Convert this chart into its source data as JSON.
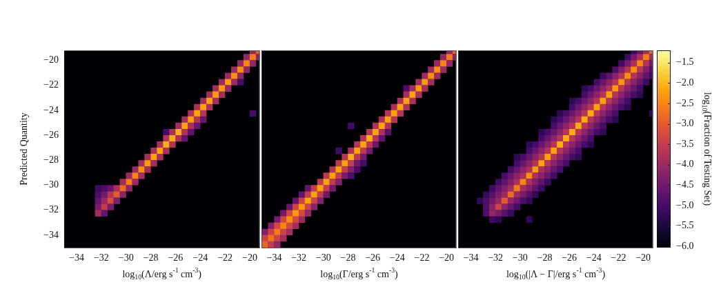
{
  "chart_data": [
    {
      "type": "scatter",
      "marker": "square",
      "xlabel": "log$_{10}$(Λ/erg s$^{-1}$ cm$^{-3}$)",
      "ylabel": "Predicted Quantity",
      "xlim": [
        -35,
        -19.2
      ],
      "ylim": [
        -35,
        -19.2
      ],
      "xticks": [
        {
          "value": -34,
          "label": "−34"
        },
        {
          "value": -32,
          "label": "−32"
        },
        {
          "value": -30,
          "label": "−30"
        },
        {
          "value": -28,
          "label": "−28"
        },
        {
          "value": -26,
          "label": "−26"
        },
        {
          "value": -24,
          "label": "−24"
        },
        {
          "value": -22,
          "label": "−22"
        },
        {
          "value": -20,
          "label": "−20"
        }
      ],
      "yticks": [
        {
          "value": -34,
          "label": "−34"
        },
        {
          "value": -32,
          "label": "−32"
        },
        {
          "value": -30,
          "label": "−30"
        },
        {
          "value": -28,
          "label": "−28"
        },
        {
          "value": -26,
          "label": "−26"
        },
        {
          "value": -24,
          "label": "−24"
        },
        {
          "value": -22,
          "label": "−22"
        },
        {
          "value": -20,
          "label": "−20"
        }
      ],
      "x": [
        -19.75,
        -19.25,
        -20.25,
        -19.75,
        -19.25,
        -20.75,
        -20.25,
        -19.75,
        -21.25,
        -20.75,
        -20.25,
        -21.75,
        -21.25,
        -20.75,
        -22.25,
        -21.75,
        -21.25,
        -20.75,
        -22.75,
        -22.25,
        -21.75,
        -23.25,
        -22.75,
        -22.25,
        -23.75,
        -23.25,
        -22.75,
        -24.25,
        -23.75,
        -23.25,
        -24.75,
        -24.25,
        -23.75,
        -19.75,
        -25.25,
        -24.75,
        -24.25,
        -23.75,
        -25.75,
        -25.25,
        -24.75,
        -24.25,
        -26.75,
        -26.25,
        -25.75,
        -25.25,
        -24.75,
        -26.75,
        -26.25,
        -25.75,
        -25.25,
        -27.25,
        -26.75,
        -26.25,
        -27.75,
        -27.25,
        -26.75,
        -28.25,
        -27.75,
        -27.25,
        -28.75,
        -28.25,
        -27.75,
        -29.25,
        -28.75,
        -28.25,
        -29.75,
        -29.25,
        -28.75,
        -30.25,
        -29.75,
        -29.25,
        -32.25,
        -31.75,
        -31.25,
        -30.75,
        -30.25,
        -29.75,
        -32.25,
        -31.75,
        -31.25,
        -30.75,
        -30.25,
        -32.25,
        -31.75,
        -31.25,
        -30.75,
        -32.25,
        -31.75,
        -31.25,
        -32.25,
        -31.75
      ],
      "values": [
        -19.25,
        -19.25,
        -19.75,
        -19.75,
        -19.75,
        -20.25,
        -20.25,
        -20.25,
        -20.75,
        -20.75,
        -20.75,
        -21.25,
        -21.25,
        -21.25,
        -21.75,
        -21.75,
        -21.75,
        -21.75,
        -22.25,
        -22.25,
        -22.25,
        -22.75,
        -22.75,
        -22.75,
        -23.25,
        -23.25,
        -23.25,
        -23.75,
        -23.75,
        -23.75,
        -24.25,
        -24.25,
        -24.25,
        -24.25,
        -24.75,
        -24.75,
        -24.75,
        -24.75,
        -25.25,
        -25.25,
        -25.25,
        -25.25,
        -25.75,
        -25.75,
        -25.75,
        -25.75,
        -25.75,
        -26.25,
        -26.25,
        -26.25,
        -26.25,
        -26.75,
        -26.75,
        -26.75,
        -27.25,
        -27.25,
        -27.25,
        -27.75,
        -27.75,
        -27.75,
        -28.25,
        -28.25,
        -28.25,
        -28.75,
        -28.75,
        -28.75,
        -29.25,
        -29.25,
        -29.25,
        -29.75,
        -29.75,
        -29.75,
        -30.25,
        -30.25,
        -30.25,
        -30.25,
        -30.25,
        -30.25,
        -30.75,
        -30.75,
        -30.75,
        -30.75,
        -30.75,
        -31.25,
        -31.25,
        -31.25,
        -31.25,
        -31.75,
        -31.75,
        -31.75,
        -32.25,
        -32.25
      ],
      "colors": [
        "#932667",
        "#e8642a",
        "#932667",
        "#f47d17",
        "#8a2368",
        "#932667",
        "#f68614",
        "#932667",
        "#9b2963",
        "#f88f11",
        "#932667",
        "#9b2963",
        "#f88f11",
        "#932667",
        "#9b2963",
        "#fa990e",
        "#9b2963",
        "#470c69",
        "#a42d5f",
        "#fa990e",
        "#9b2963",
        "#a42d5f",
        "#fa990e",
        "#a42d5f",
        "#a42d5f",
        "#fba20b",
        "#a42d5f",
        "#ac305b",
        "#fba20b",
        "#ac305b",
        "#ac305b",
        "#fba20b",
        "#b53457",
        "#470c69",
        "#a42d5f",
        "#fa990e",
        "#b53457",
        "#68166e",
        "#a42d5f",
        "#fba20b",
        "#ac305b",
        "#68166e",
        "#470c69",
        "#ac305b",
        "#fbac12",
        "#ac305b",
        "#60146d",
        "#b53457",
        "#fbac12",
        "#ac305b",
        "#60146d",
        "#ac305b",
        "#fbac12",
        "#b53457",
        "#ac305b",
        "#fba20b",
        "#ac305b",
        "#a42d5f",
        "#fba20b",
        "#ac305b",
        "#a42d5f",
        "#fa990e",
        "#a42d5f",
        "#9b2963",
        "#f88f11",
        "#a42d5f",
        "#9b2963",
        "#f68614",
        "#a42d5f",
        "#a42d5f",
        "#f47d17",
        "#9b2963",
        "#3f0a64",
        "#500e6a",
        "#68166e",
        "#ac305b",
        "#ec6c23",
        "#932667",
        "#500e6a",
        "#711a6d",
        "#b53457",
        "#e35c31",
        "#8a2368",
        "#60146d",
        "#9b2963",
        "#d84d3e",
        "#82206a",
        "#791d6b",
        "#c43d4e",
        "#791d6b",
        "#a42d5f",
        "#60146d"
      ]
    },
    {
      "type": "scatter",
      "marker": "square",
      "xlabel": "log$_{10}$(Γ/erg s$^{-1}$ cm$^{-3}$)",
      "tick_labels": "x",
      "xlim": [
        -35,
        -19.2
      ],
      "ylim": [
        -35,
        -19.2
      ],
      "xticks": [
        {
          "value": -34,
          "label": "−34"
        },
        {
          "value": -32,
          "label": "−32"
        },
        {
          "value": -30,
          "label": "−30"
        },
        {
          "value": -28,
          "label": "−28"
        },
        {
          "value": -26,
          "label": "−26"
        },
        {
          "value": -24,
          "label": "−24"
        },
        {
          "value": -22,
          "label": "−22"
        },
        {
          "value": -20,
          "label": "−20"
        }
      ],
      "x": [
        -19.75,
        -19.25,
        -20.25,
        -19.75,
        -19.25,
        -20.75,
        -20.25,
        -19.75,
        -21.25,
        -20.75,
        -20.25,
        -21.75,
        -21.25,
        -20.75,
        -22.25,
        -21.75,
        -21.25,
        -23.25,
        -22.75,
        -22.25,
        -21.75,
        -23.25,
        -22.75,
        -22.25,
        -23.75,
        -23.25,
        -22.75,
        -24.25,
        -23.75,
        -23.25,
        -24.75,
        -24.25,
        -23.75,
        -25.25,
        -24.75,
        -24.25,
        -27.75,
        -25.75,
        -25.25,
        -24.75,
        -26.25,
        -25.75,
        -25.25,
        -24.75,
        -26.75,
        -26.25,
        -25.75,
        -25.25,
        -27.25,
        -26.75,
        -26.25,
        -25.75,
        -28.75,
        -27.75,
        -27.25,
        -26.75,
        -26.25,
        -28.25,
        -27.75,
        -27.25,
        -26.75,
        -28.75,
        -28.25,
        -27.75,
        -27.25,
        -26.75,
        -29.25,
        -28.75,
        -28.25,
        -27.75,
        -27.25,
        -29.75,
        -29.25,
        -28.75,
        -28.25,
        -27.75,
        -30.25,
        -29.75,
        -29.25,
        -28.75,
        -31.25,
        -30.75,
        -30.25,
        -29.75,
        -29.25,
        -31.75,
        -31.25,
        -30.75,
        -30.25,
        -29.75,
        -32.25,
        -31.75,
        -31.25,
        -30.75,
        -30.25,
        -32.75,
        -32.25,
        -31.75,
        -31.25,
        -30.75,
        -33.25,
        -32.75,
        -32.25,
        -31.75,
        -31.25,
        -33.75,
        -33.25,
        -32.75,
        -32.25,
        -31.75,
        -34.25,
        -33.75,
        -33.25,
        -32.75,
        -32.25,
        -34.75,
        -34.25,
        -33.75,
        -33.25,
        -32.75,
        -34.75,
        -34.25,
        -33.75,
        -33.25,
        -34.75,
        -34.25,
        -33.75
      ],
      "values": [
        -19.25,
        -19.25,
        -19.75,
        -19.75,
        -19.75,
        -20.25,
        -20.25,
        -20.25,
        -20.75,
        -20.75,
        -20.75,
        -21.25,
        -21.25,
        -21.25,
        -21.75,
        -21.75,
        -21.75,
        -22.25,
        -22.25,
        -22.25,
        -22.25,
        -22.75,
        -22.75,
        -22.75,
        -23.25,
        -23.25,
        -23.25,
        -23.75,
        -23.75,
        -23.75,
        -24.25,
        -24.25,
        -24.25,
        -24.75,
        -24.75,
        -24.75,
        -25.25,
        -25.25,
        -25.25,
        -25.25,
        -25.75,
        -25.75,
        -25.75,
        -25.75,
        -26.25,
        -26.25,
        -26.25,
        -26.25,
        -26.75,
        -26.75,
        -26.75,
        -26.75,
        -27.25,
        -27.25,
        -27.25,
        -27.25,
        -27.25,
        -27.75,
        -27.75,
        -27.75,
        -27.75,
        -28.25,
        -28.25,
        -28.25,
        -28.25,
        -28.25,
        -28.75,
        -28.75,
        -28.75,
        -28.75,
        -28.75,
        -29.25,
        -29.25,
        -29.25,
        -29.25,
        -29.25,
        -29.75,
        -29.75,
        -29.75,
        -29.75,
        -30.25,
        -30.25,
        -30.25,
        -30.25,
        -30.25,
        -30.75,
        -30.75,
        -30.75,
        -30.75,
        -30.75,
        -31.25,
        -31.25,
        -31.25,
        -31.25,
        -31.25,
        -31.75,
        -31.75,
        -31.75,
        -31.75,
        -31.75,
        -32.25,
        -32.25,
        -32.25,
        -32.25,
        -32.25,
        -32.75,
        -32.75,
        -32.75,
        -32.75,
        -32.75,
        -33.25,
        -33.25,
        -33.25,
        -33.25,
        -33.25,
        -33.75,
        -33.75,
        -33.75,
        -33.75,
        -33.75,
        -34.25,
        -34.25,
        -34.25,
        -34.25,
        -34.75,
        -34.75,
        -34.75
      ],
      "colors": [
        "#932667",
        "#e8642a",
        "#932667",
        "#f47d17",
        "#8a2368",
        "#9b2963",
        "#f68614",
        "#932667",
        "#9b2963",
        "#f88f11",
        "#9b2963",
        "#a42d5f",
        "#f88f11",
        "#9b2963",
        "#a42d5f",
        "#fa990e",
        "#a42d5f",
        "#500e6a",
        "#a42d5f",
        "#fa990e",
        "#a42d5f",
        "#a42d5f",
        "#fba20b",
        "#ac305b",
        "#ac305b",
        "#fba20b",
        "#ac305b",
        "#ac305b",
        "#fba20b",
        "#ac305b",
        "#b53457",
        "#fba20b",
        "#b53457",
        "#ac305b",
        "#fba20b",
        "#b53457",
        "#470c69",
        "#ac305b",
        "#fba20b",
        "#ac305b",
        "#b53457",
        "#fba20b",
        "#ac305b",
        "#58116b",
        "#b53457",
        "#fbac12",
        "#b53457",
        "#60146d",
        "#b53457",
        "#fba20b",
        "#bd3853",
        "#68166e",
        "#470c69",
        "#ac305b",
        "#fba20b",
        "#bd3853",
        "#711a6d",
        "#b53457",
        "#fbac12",
        "#bd3853",
        "#711a6d",
        "#bd3853",
        "#fba20b",
        "#c43d4e",
        "#711a6d",
        "#470c69",
        "#b53457",
        "#fba20b",
        "#c43d4e",
        "#82206a",
        "#470c69",
        "#bd3853",
        "#fba20b",
        "#c43d4e",
        "#791d6b",
        "#500e6a",
        "#bd3853",
        "#fba20b",
        "#c43d4e",
        "#82206a",
        "#60146d",
        "#c43d4e",
        "#fba20b",
        "#c43d4e",
        "#711a6d",
        "#60146d",
        "#c43d4e",
        "#fba20b",
        "#c43d4e",
        "#711a6d",
        "#60146d",
        "#cb4348",
        "#fba20b",
        "#cb4348",
        "#82206a",
        "#68166e",
        "#cb4348",
        "#fa990e",
        "#cb4348",
        "#8a2368",
        "#711a6d",
        "#d24843",
        "#fa990e",
        "#d24843",
        "#932667",
        "#791d6b",
        "#d24843",
        "#f88f11",
        "#d24843",
        "#9b2963",
        "#82206a",
        "#d24843",
        "#f68614",
        "#d24843",
        "#a42d5f",
        "#82206a",
        "#cb4348",
        "#f47d17",
        "#cb4348",
        "#a42d5f",
        "#cb4348",
        "#f1741c",
        "#cb4348",
        "#a42d5f",
        "#e8642a",
        "#c43d4e",
        "#932667"
      ]
    },
    {
      "type": "scatter",
      "marker": "square",
      "xlabel": "log$_{10}$(|Λ − Γ|/erg s$^{-1}$ cm$^{-3}$)",
      "tick_labels": "x",
      "clabel": "log$_{10}$(Fraction of Testing Set)",
      "xlim": [
        -35,
        -19.2
      ],
      "ylim": [
        -35,
        -19.2
      ],
      "xticks": [
        {
          "value": -34,
          "label": "−34"
        },
        {
          "value": -32,
          "label": "−32"
        },
        {
          "value": -30,
          "label": "−30"
        },
        {
          "value": -28,
          "label": "−28"
        },
        {
          "value": -26,
          "label": "−26"
        },
        {
          "value": -24,
          "label": "−24"
        },
        {
          "value": -22,
          "label": "−22"
        },
        {
          "value": -20,
          "label": "−20"
        }
      ],
      "clim": [
        -6.03,
        -1.2
      ],
      "cticks": [
        {
          "value": -6,
          "label": "−6.0"
        },
        {
          "value": -5.5,
          "label": "−5.5"
        },
        {
          "value": -5,
          "label": "−5.0"
        },
        {
          "value": -4.5,
          "label": "−4.5"
        },
        {
          "value": -4,
          "label": "−4.0"
        },
        {
          "value": -3.5,
          "label": "−3.5"
        },
        {
          "value": -3,
          "label": "−3.0"
        },
        {
          "value": -2.5,
          "label": "−2.5"
        },
        {
          "value": -2,
          "label": "−2.0"
        },
        {
          "value": -1.5,
          "label": "−1.5"
        }
      ],
      "x": [
        -20.75,
        -20.25,
        -19.75,
        -19.25,
        -21.25,
        -20.75,
        -20.25,
        -19.75,
        -19.25,
        -21.75,
        -21.25,
        -20.75,
        -20.25,
        -19.75,
        -19.25,
        -22.25,
        -21.75,
        -21.25,
        -20.75,
        -20.25,
        -19.75,
        -19.25,
        -23.25,
        -22.75,
        -22.25,
        -21.75,
        -21.25,
        -20.75,
        -20.25,
        -19.75,
        -19.25,
        -23.75,
        -23.25,
        -22.75,
        -22.25,
        -21.75,
        -21.25,
        -20.75,
        -20.25,
        -19.75,
        -24.75,
        -24.25,
        -23.75,
        -23.25,
        -22.75,
        -22.25,
        -21.75,
        -21.25,
        -20.75,
        -20.25,
        -24.75,
        -24.25,
        -23.75,
        -23.25,
        -22.75,
        -22.25,
        -21.75,
        -21.25,
        -20.75,
        -20.25,
        -25.75,
        -25.25,
        -24.75,
        -24.25,
        -23.75,
        -23.25,
        -22.75,
        -22.25,
        -21.75,
        -21.25,
        -25.75,
        -25.25,
        -24.75,
        -24.25,
        -23.75,
        -23.25,
        -22.75,
        -22.25,
        -21.75,
        -21.25,
        -26.75,
        -26.25,
        -25.75,
        -25.25,
        -24.75,
        -24.25,
        -23.75,
        -23.25,
        -22.75,
        -22.25,
        -19.25,
        -27.25,
        -26.75,
        -26.25,
        -25.75,
        -25.25,
        -24.75,
        -24.25,
        -23.75,
        -23.25,
        -22.75,
        -22.25,
        -27.25,
        -26.75,
        -26.25,
        -25.75,
        -25.25,
        -24.75,
        -24.25,
        -23.75,
        -23.25,
        -28.25,
        -27.75,
        -27.25,
        -26.75,
        -26.25,
        -25.75,
        -25.25,
        -24.75,
        -24.25,
        -23.75,
        -23.25,
        -28.25,
        -27.75,
        -27.25,
        -26.75,
        -26.25,
        -25.75,
        -25.25,
        -24.75,
        -24.25,
        -29.25,
        -28.75,
        -28.25,
        -27.75,
        -27.25,
        -26.75,
        -26.25,
        -25.75,
        -25.25,
        -24.75,
        -24.25,
        -29.25,
        -28.75,
        -28.25,
        -27.75,
        -27.25,
        -26.75,
        -26.25,
        -25.75,
        -25.25,
        -30.25,
        -29.75,
        -29.25,
        -28.75,
        -28.25,
        -27.75,
        -27.25,
        -26.75,
        -26.25,
        -25.75,
        -25.25,
        -30.25,
        -29.75,
        -29.25,
        -28.75,
        -28.25,
        -27.75,
        -27.25,
        -26.75,
        -26.25,
        -30.75,
        -30.25,
        -29.75,
        -29.25,
        -28.75,
        -28.25,
        -27.75,
        -27.25,
        -26.75,
        -31.25,
        -30.75,
        -30.25,
        -29.75,
        -29.25,
        -28.75,
        -28.25,
        -27.75,
        -27.25,
        -31.75,
        -31.25,
        -30.75,
        -30.25,
        -29.75,
        -29.25,
        -28.75,
        -28.25,
        -27.75,
        -32.25,
        -31.75,
        -31.25,
        -30.75,
        -30.25,
        -29.75,
        -29.25,
        -28.75,
        -28.25,
        -32.75,
        -32.25,
        -31.75,
        -31.25,
        -30.75,
        -30.25,
        -29.75,
        -29.25,
        -28.75,
        -33.25,
        -32.75,
        -32.25,
        -31.75,
        -31.25,
        -30.75,
        -30.25,
        -29.75,
        -29.25,
        -32.75,
        -32.25,
        -31.75,
        -31.25,
        -30.75,
        -30.25,
        -32.75,
        -32.25,
        -31.75,
        -31.25,
        -30.75,
        -32.25,
        -31.75,
        -29.25
      ],
      "values": [
        -19.25,
        -19.25,
        -19.25,
        -19.25,
        -19.75,
        -19.75,
        -19.75,
        -19.75,
        -19.75,
        -20.25,
        -20.25,
        -20.25,
        -20.25,
        -20.25,
        -20.25,
        -20.75,
        -20.75,
        -20.75,
        -20.75,
        -20.75,
        -20.75,
        -20.75,
        -21.25,
        -21.25,
        -21.25,
        -21.25,
        -21.25,
        -21.25,
        -21.25,
        -21.25,
        -21.25,
        -21.75,
        -21.75,
        -21.75,
        -21.75,
        -21.75,
        -21.75,
        -21.75,
        -21.75,
        -21.75,
        -22.25,
        -22.25,
        -22.25,
        -22.25,
        -22.25,
        -22.25,
        -22.25,
        -22.25,
        -22.25,
        -22.25,
        -22.75,
        -22.75,
        -22.75,
        -22.75,
        -22.75,
        -22.75,
        -22.75,
        -22.75,
        -22.75,
        -22.75,
        -23.25,
        -23.25,
        -23.25,
        -23.25,
        -23.25,
        -23.25,
        -23.25,
        -23.25,
        -23.25,
        -23.25,
        -23.75,
        -23.75,
        -23.75,
        -23.75,
        -23.75,
        -23.75,
        -23.75,
        -23.75,
        -23.75,
        -23.75,
        -24.25,
        -24.25,
        -24.25,
        -24.25,
        -24.25,
        -24.25,
        -24.25,
        -24.25,
        -24.25,
        -24.25,
        -24.25,
        -24.75,
        -24.75,
        -24.75,
        -24.75,
        -24.75,
        -24.75,
        -24.75,
        -24.75,
        -24.75,
        -24.75,
        -24.75,
        -25.25,
        -25.25,
        -25.25,
        -25.25,
        -25.25,
        -25.25,
        -25.25,
        -25.25,
        -25.25,
        -25.75,
        -25.75,
        -25.75,
        -25.75,
        -25.75,
        -25.75,
        -25.75,
        -25.75,
        -25.75,
        -25.75,
        -25.75,
        -26.25,
        -26.25,
        -26.25,
        -26.25,
        -26.25,
        -26.25,
        -26.25,
        -26.25,
        -26.25,
        -26.75,
        -26.75,
        -26.75,
        -26.75,
        -26.75,
        -26.75,
        -26.75,
        -26.75,
        -26.75,
        -26.75,
        -26.75,
        -27.25,
        -27.25,
        -27.25,
        -27.25,
        -27.25,
        -27.25,
        -27.25,
        -27.25,
        -27.25,
        -27.75,
        -27.75,
        -27.75,
        -27.75,
        -27.75,
        -27.75,
        -27.75,
        -27.75,
        -27.75,
        -27.75,
        -27.75,
        -28.25,
        -28.25,
        -28.25,
        -28.25,
        -28.25,
        -28.25,
        -28.25,
        -28.25,
        -28.25,
        -28.75,
        -28.75,
        -28.75,
        -28.75,
        -28.75,
        -28.75,
        -28.75,
        -28.75,
        -28.75,
        -29.25,
        -29.25,
        -29.25,
        -29.25,
        -29.25,
        -29.25,
        -29.25,
        -29.25,
        -29.25,
        -29.75,
        -29.75,
        -29.75,
        -29.75,
        -29.75,
        -29.75,
        -29.75,
        -29.75,
        -29.75,
        -30.25,
        -30.25,
        -30.25,
        -30.25,
        -30.25,
        -30.25,
        -30.25,
        -30.25,
        -30.25,
        -30.75,
        -30.75,
        -30.75,
        -30.75,
        -30.75,
        -30.75,
        -30.75,
        -30.75,
        -30.75,
        -31.25,
        -31.25,
        -31.25,
        -31.25,
        -31.25,
        -31.25,
        -31.25,
        -31.25,
        -31.25,
        -31.75,
        -31.75,
        -31.75,
        -31.75,
        -31.75,
        -31.75,
        -32.25,
        -32.25,
        -32.25,
        -32.25,
        -32.25,
        -32.75,
        -32.75,
        -32.75
      ],
      "cvalues": [
        -5.2,
        -4.6,
        -3.9,
        -2.9,
        -5.1,
        -4.4,
        -3.8,
        -2.6,
        -3.9,
        -5.0,
        -4.4,
        -3.8,
        -2.5,
        -3.7,
        -4.5,
        -4.9,
        -4.3,
        -3.7,
        -2.4,
        -3.7,
        -4.3,
        -4.9,
        -5.1,
        -4.7,
        -4.2,
        -3.7,
        -2.4,
        -3.7,
        -4.2,
        -4.7,
        -5.1,
        -5.0,
        -4.6,
        -4.2,
        -3.7,
        -2.3,
        -3.7,
        -4.2,
        -4.6,
        -5.1,
        -5.3,
        -5.0,
        -4.6,
        -4.2,
        -3.7,
        -2.3,
        -3.7,
        -4.2,
        -4.6,
        -5.0,
        -5.0,
        -4.6,
        -4.2,
        -3.7,
        -2.2,
        -3.7,
        -4.2,
        -4.6,
        -5.0,
        -5.3,
        -5.3,
        -5.0,
        -4.6,
        -4.2,
        -3.7,
        -2.2,
        -3.7,
        -4.2,
        -4.6,
        -5.0,
        -5.0,
        -4.6,
        -4.2,
        -3.7,
        -2.2,
        -3.7,
        -4.2,
        -4.6,
        -5.0,
        -5.3,
        -5.3,
        -5.0,
        -4.6,
        -4.2,
        -3.7,
        -2.1,
        -3.7,
        -4.2,
        -4.6,
        -5.0,
        -5.3,
        -5.3,
        -5.0,
        -4.6,
        -4.2,
        -3.7,
        -2.1,
        -3.7,
        -4.2,
        -4.6,
        -5.0,
        -5.3,
        -5.0,
        -4.6,
        -4.2,
        -3.7,
        -2.1,
        -3.7,
        -4.2,
        -4.6,
        -5.0,
        -5.3,
        -5.0,
        -4.6,
        -4.2,
        -3.7,
        -2.1,
        -3.7,
        -4.2,
        -4.6,
        -5.0,
        -5.3,
        -5.0,
        -4.6,
        -4.2,
        -3.7,
        -2.1,
        -3.7,
        -4.2,
        -4.6,
        -5.0,
        -5.3,
        -5.0,
        -4.6,
        -4.2,
        -3.7,
        -2.1,
        -3.7,
        -4.2,
        -4.6,
        -5.0,
        -5.3,
        -5.0,
        -4.6,
        -4.2,
        -3.7,
        -2.2,
        -3.7,
        -4.2,
        -4.6,
        -5.0,
        -5.3,
        -5.0,
        -4.6,
        -4.2,
        -3.7,
        -2.2,
        -3.7,
        -4.2,
        -4.6,
        -5.0,
        -5.3,
        -5.0,
        -4.6,
        -4.2,
        -3.7,
        -2.2,
        -3.7,
        -4.2,
        -4.6,
        -5.0,
        -5.0,
        -4.6,
        -4.2,
        -3.8,
        -2.3,
        -3.8,
        -4.2,
        -4.6,
        -5.0,
        -5.0,
        -4.6,
        -4.2,
        -3.8,
        -2.4,
        -3.8,
        -4.2,
        -4.6,
        -5.0,
        -5.1,
        -4.7,
        -4.3,
        -3.8,
        -2.5,
        -3.8,
        -4.3,
        -4.7,
        -5.1,
        -5.1,
        -4.7,
        -4.3,
        -3.9,
        -2.6,
        -3.9,
        -4.3,
        -4.7,
        -5.1,
        -5.2,
        -4.8,
        -4.4,
        -4.0,
        -2.8,
        -4.0,
        -4.4,
        -4.8,
        -5.2,
        -5.3,
        -4.9,
        -4.5,
        -4.1,
        -3.0,
        -4.1,
        -4.5,
        -4.9,
        -5.2,
        -4.9,
        -4.2,
        -3.4,
        -4.2,
        -4.6,
        -5.0,
        -4.9,
        -4.1,
        -4.4,
        -4.8,
        -5.2,
        -5.1,
        -5.3,
        -5.3
      ]
    }
  ]
}
